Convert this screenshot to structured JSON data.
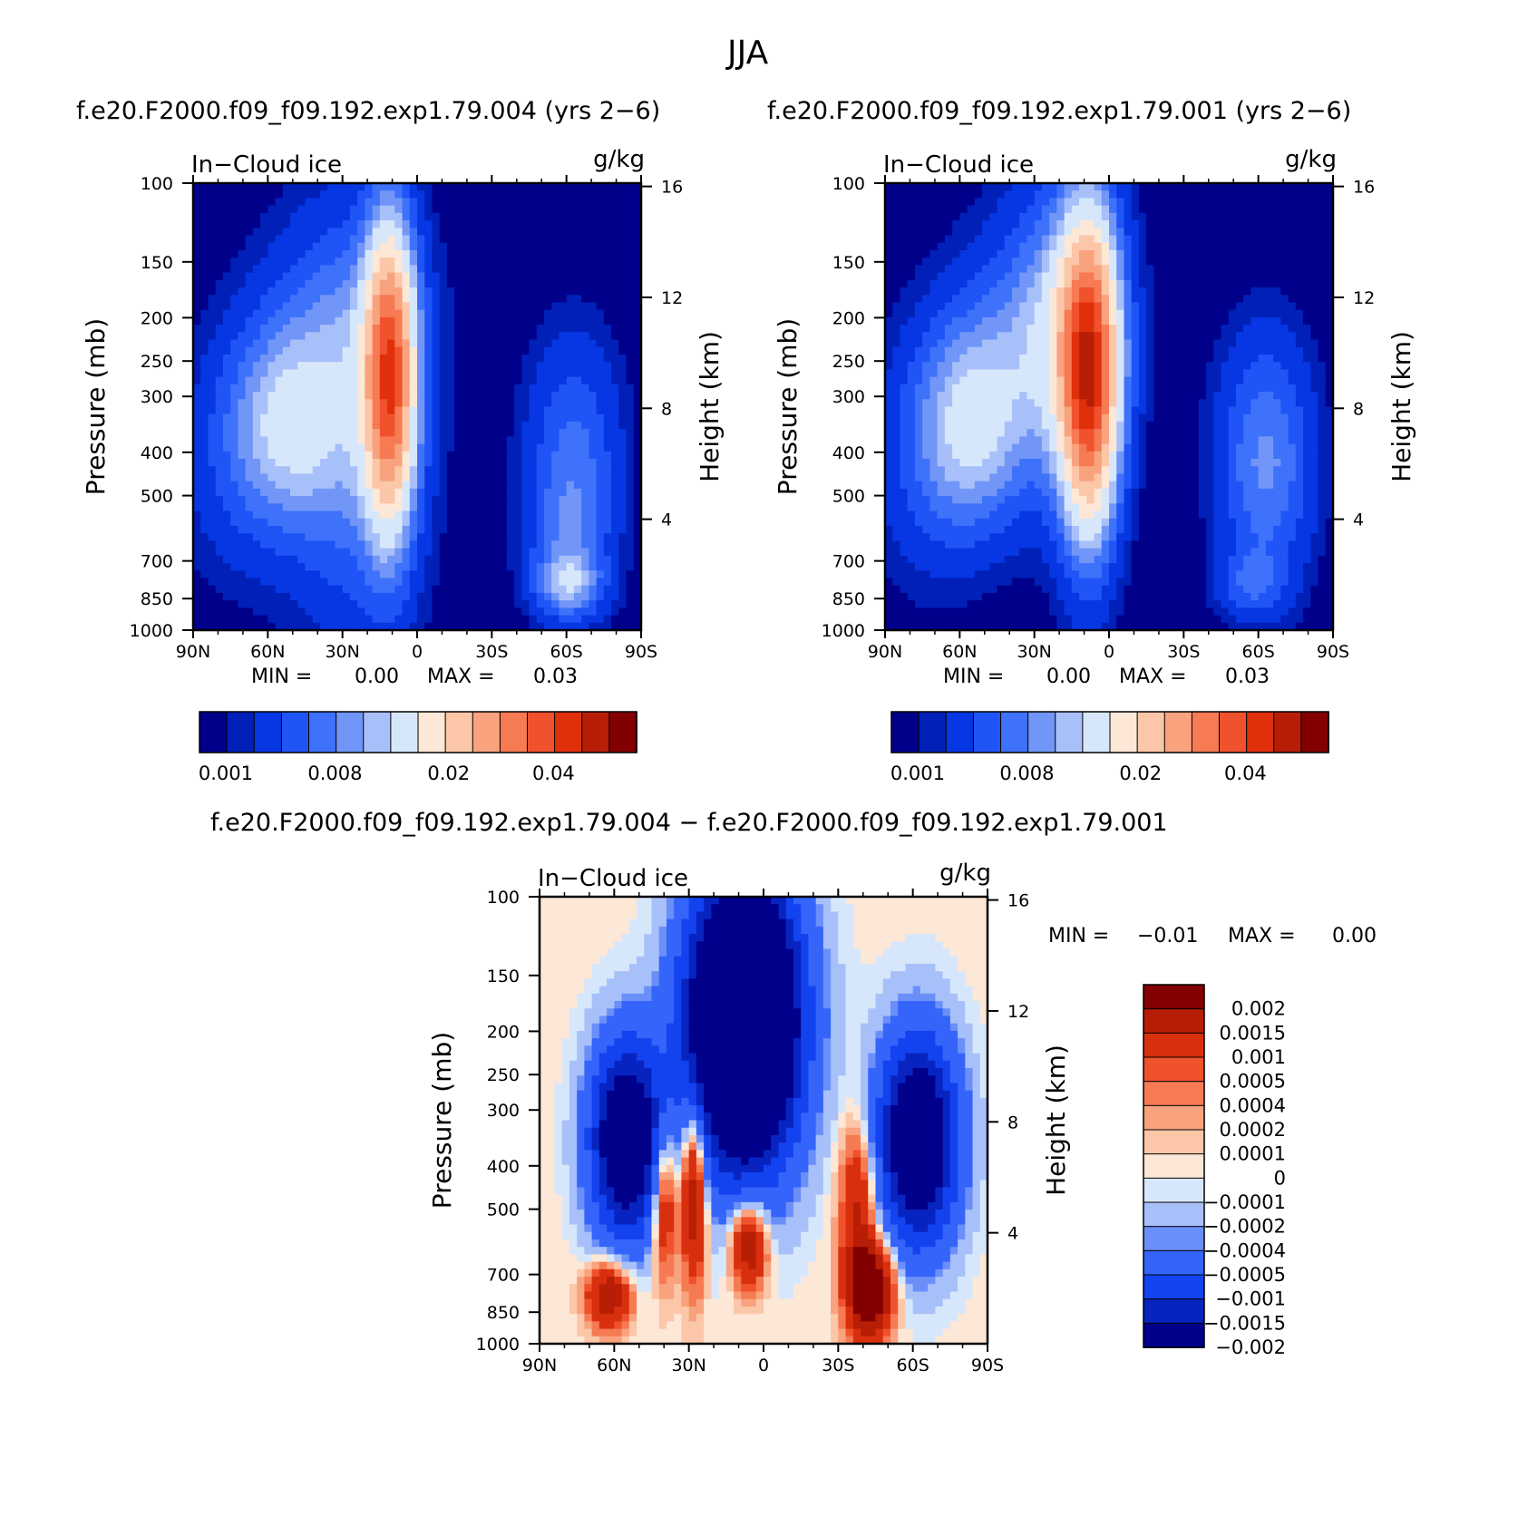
{
  "figure": {
    "title": "JJA",
    "panel_left_title": "f.e20.F2000.f09_f09.192.exp1.79.004 (yrs 2−6)",
    "panel_right_title": "f.e20.F2000.f09_f09.192.exp1.79.001 (yrs 2−6)",
    "panel_diff_title": "f.e20.F2000.f09_f09.192.exp1.79.004 − f.e20.F2000.f09_f09.192.exp1.79.001"
  },
  "colors": {
    "mean_palette": [
      "#00008b",
      "#0020b8",
      "#0637e3",
      "#1f55f7",
      "#3f72fa",
      "#7296f7",
      "#a8c0fa",
      "#d7e7fb",
      "#fde7d6",
      "#fcc6a8",
      "#f9a27e",
      "#f67a52",
      "#f0522d",
      "#e0300b",
      "#b71e05",
      "#830002"
    ],
    "diff_palette": [
      "#00008b",
      "#0824c0",
      "#1342ef",
      "#3464fa",
      "#6b8ff9",
      "#a8c0fa",
      "#d7e7fb",
      "#fde7d6",
      "#fcc6a8",
      "#f9a27e",
      "#f67a52",
      "#f0522d",
      "#d8300f",
      "#b71e05",
      "#830002"
    ]
  },
  "chart_data": [
    {
      "type": "heatmap",
      "title": "f.e20.F2000.f09_f09.192.exp1.79.004 (yrs 2−6)",
      "variable": "In−Cloud ice",
      "units": "g/kg",
      "xlabel": "",
      "ylabel": "Pressure (mb)",
      "y2label": "Height (km)",
      "x_ticks": [
        "90N",
        "60N",
        "30N",
        "0",
        "30S",
        "60S",
        "90S"
      ],
      "y_ticks": [
        100,
        150,
        200,
        250,
        300,
        400,
        500,
        700,
        850,
        1000
      ],
      "y2_ticks": [
        4,
        8,
        12,
        16
      ],
      "y_scale": "log",
      "xlim": [
        90,
        -90
      ],
      "ylim": [
        1000,
        100
      ],
      "min_label": "MIN =",
      "min_value": "0.00",
      "max_label": "MAX =",
      "max_value": "0.03",
      "colorbar_labels": [
        "0.001",
        "0.008",
        "0.02",
        "0.04"
      ],
      "features": [
        {
          "lat": 11,
          "p": 270,
          "peak": 0.03,
          "note": "tropical upper-troposphere maximum"
        },
        {
          "lat": 53,
          "p": 350,
          "peak": 0.009,
          "note": "NH mid-latitude"
        },
        {
          "lat": -61,
          "p": 780,
          "peak": 0.008,
          "note": "SH low level"
        },
        {
          "lat": -63,
          "p": 400,
          "peak": 0.006,
          "note": "SH mid-latitude"
        }
      ]
    },
    {
      "type": "heatmap",
      "title": "f.e20.F2000.f09_f09.192.exp1.79.001 (yrs 2−6)",
      "variable": "In−Cloud ice",
      "units": "g/kg",
      "xlabel": "",
      "ylabel": "Pressure (mb)",
      "y2label": "Height (km)",
      "x_ticks": [
        "90N",
        "60N",
        "30N",
        "0",
        "30S",
        "60S",
        "90S"
      ],
      "y_ticks": [
        100,
        150,
        200,
        250,
        300,
        400,
        500,
        700,
        850,
        1000
      ],
      "y2_ticks": [
        4,
        8,
        12,
        16
      ],
      "y_scale": "log",
      "xlim": [
        90,
        -90
      ],
      "ylim": [
        1000,
        100
      ],
      "min_label": "MIN =",
      "min_value": "0.00",
      "max_label": "MAX =",
      "max_value": "0.03",
      "colorbar_labels": [
        "0.001",
        "0.008",
        "0.02",
        "0.04"
      ],
      "features": [
        {
          "lat": 8,
          "p": 270,
          "peak": 0.033,
          "note": "tropical upper-troposphere maximum"
        },
        {
          "lat": 55,
          "p": 350,
          "peak": 0.01,
          "note": "NH mid-latitude"
        },
        {
          "lat": -63,
          "p": 420,
          "peak": 0.008,
          "note": "SH mid-latitude"
        },
        {
          "lat": -57,
          "p": 800,
          "peak": 0.005,
          "note": "SH low level"
        }
      ]
    },
    {
      "type": "heatmap",
      "title": "f.e20.F2000.f09_f09.192.exp1.79.004 − f.e20.F2000.f09_f09.192.exp1.79.001",
      "variable": "In−Cloud ice",
      "units": "g/kg",
      "xlabel": "",
      "ylabel": "Pressure (mb)",
      "y2label": "Height (km)",
      "x_ticks": [
        "90N",
        "60N",
        "30N",
        "0",
        "30S",
        "60S",
        "90S"
      ],
      "y_ticks": [
        100,
        150,
        200,
        250,
        300,
        400,
        500,
        700,
        850,
        1000
      ],
      "y2_ticks": [
        4,
        8,
        12,
        16
      ],
      "y_scale": "log",
      "xlim": [
        90,
        -90
      ],
      "ylim": [
        1000,
        100
      ],
      "min_label": "MIN =",
      "min_value": "−0.01",
      "max_label": "MAX =",
      "max_value": "0.00",
      "colorbar_labels": [
        "0.002",
        "0.0015",
        "0.001",
        "0.0005",
        "0.0004",
        "0.0002",
        "0.0001",
        "0",
        "−0.0001",
        "−0.0002",
        "−0.0004",
        "−0.0005",
        "−0.001",
        "−0.0015",
        "−0.002"
      ],
      "features": [
        {
          "lat": 8,
          "p": 180,
          "peak": -0.005,
          "note": "tropical upper negative"
        },
        {
          "lat": 55,
          "p": 350,
          "peak": -0.003,
          "note": "NH mid-latitude negative"
        },
        {
          "lat": -62,
          "p": 350,
          "peak": -0.003,
          "note": "SH mid-latitude negative"
        },
        {
          "lat": -43,
          "p": 760,
          "peak": 0.0025,
          "note": "SH low-level positive"
        },
        {
          "lat": 62,
          "p": 780,
          "peak": 0.0016,
          "note": "NH low-level positive"
        },
        {
          "lat": 28,
          "p": 450,
          "peak": 0.0017,
          "note": "tropical positive"
        },
        {
          "lat": 6,
          "p": 600,
          "peak": 0.0016,
          "note": "equatorial positive"
        }
      ]
    }
  ]
}
